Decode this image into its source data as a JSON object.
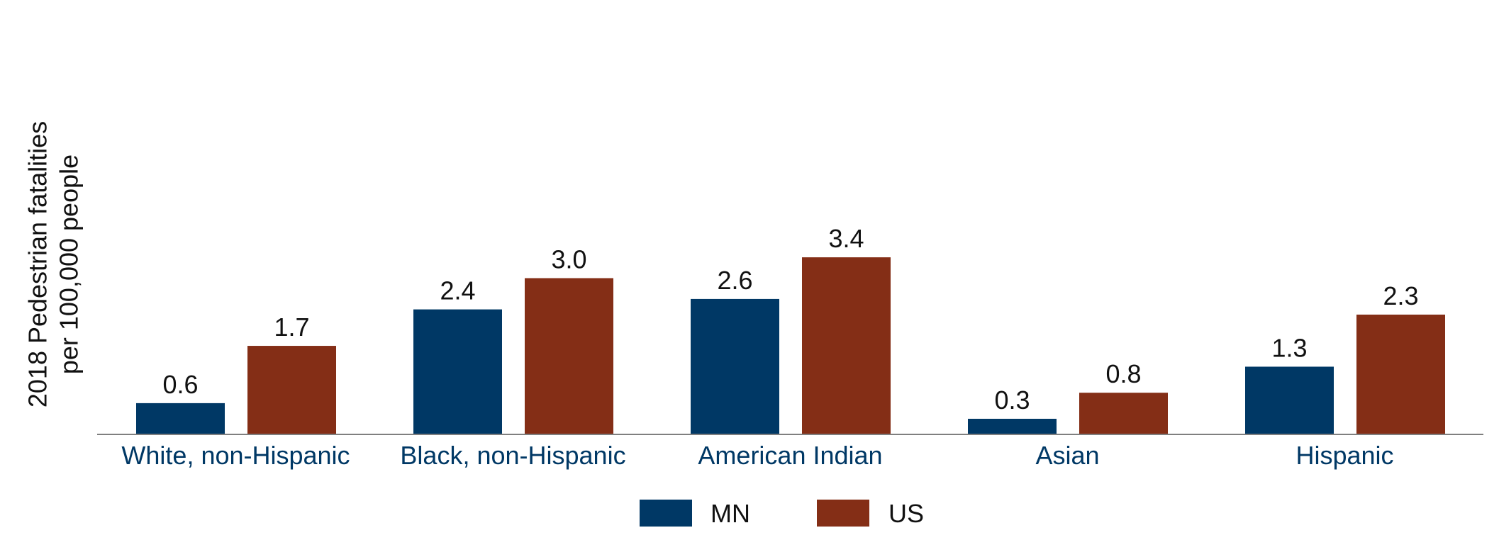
{
  "chart_data": {
    "type": "bar",
    "title": "",
    "xlabel": "",
    "ylabel_lines": [
      "2018 Pedestrian fatalities",
      "per 100,000 people"
    ],
    "ylim": [
      0,
      4.2
    ],
    "grid": false,
    "legend_position": "bottom-center",
    "categories": [
      "White, non-Hispanic",
      "Black, non-Hispanic",
      "American Indian",
      "Asian",
      "Hispanic"
    ],
    "series": [
      {
        "name": "MN",
        "color": "#003865",
        "values": [
          0.6,
          2.4,
          2.6,
          0.3,
          1.3
        ],
        "labels": [
          "0.6",
          "2.4",
          "2.6",
          "0.3",
          "1.3"
        ]
      },
      {
        "name": "US",
        "color": "#842E16",
        "values": [
          1.7,
          3.0,
          3.4,
          0.8,
          2.3
        ],
        "labels": [
          "1.7",
          "3.0",
          "3.4",
          "0.8",
          "2.3"
        ]
      }
    ],
    "category_label_color": "#003865",
    "axis_color": "#7f7f7f"
  }
}
